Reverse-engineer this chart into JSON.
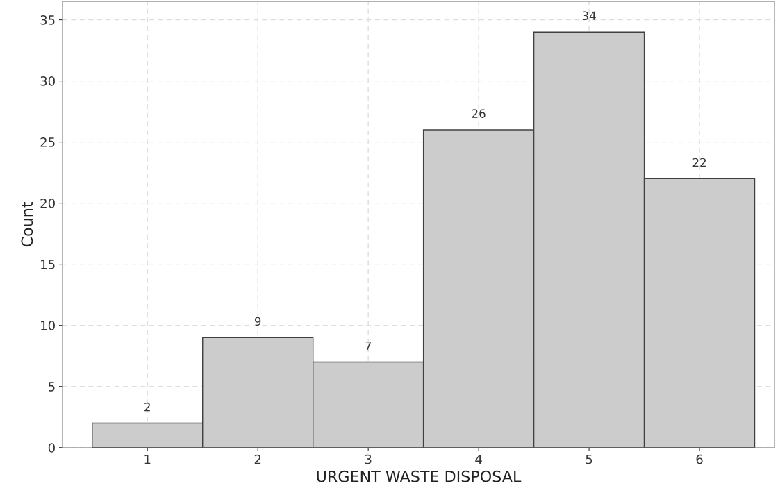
{
  "chart_data": {
    "type": "histogram",
    "xlabel": "URGENT WASTE DISPOSAL",
    "ylabel": "Count",
    "bins": [
      0.5,
      1.5,
      2.5,
      3.5,
      4.5,
      5.5,
      6.5
    ],
    "values": [
      2,
      9,
      7,
      26,
      34,
      22
    ],
    "color": "#cccccc",
    "xlim": [
      0.23,
      6.68
    ],
    "xticks": [
      1,
      2,
      3,
      4,
      5,
      6
    ],
    "ylim": [
      0,
      36.5
    ],
    "yticks": [
      0,
      5,
      10,
      15,
      20,
      25,
      30,
      35
    ],
    "grid": true,
    "data_labels": true
  }
}
